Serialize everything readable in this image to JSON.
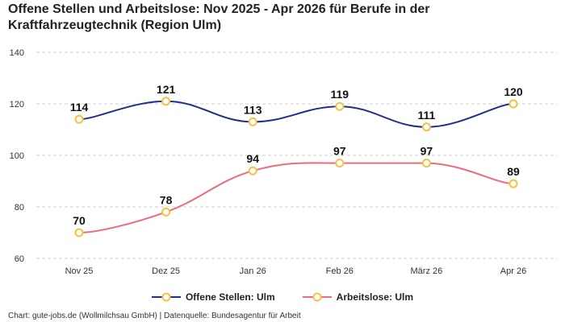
{
  "chart_data": {
    "type": "line",
    "title": "Offene Stellen und Arbeitslose: Nov 2025 - Apr 2026 für Berufe in der Kraftfahrzeugtechnik (Region Ulm)",
    "categories": [
      "Nov 25",
      "Dez 25",
      "Jan 26",
      "Feb 26",
      "März 26",
      "Apr 26"
    ],
    "ylim": [
      60,
      140
    ],
    "yticks": [
      60,
      80,
      100,
      120,
      140
    ],
    "grid": true,
    "legend_position": "bottom",
    "series": [
      {
        "name": "Offene Stellen: Ulm",
        "values": [
          114,
          121,
          113,
          119,
          111,
          120
        ],
        "color": "#1f2f8a"
      },
      {
        "name": "Arbeitslose: Ulm",
        "values": [
          70,
          78,
          94,
          97,
          97,
          89
        ],
        "color": "#ee6b7c"
      }
    ],
    "marker_color": "#f5c242"
  },
  "source": "Chart: gute-jobs.de (Wollmilchsau GmbH) | Datenquelle: Bundesagentur für Arbeit"
}
